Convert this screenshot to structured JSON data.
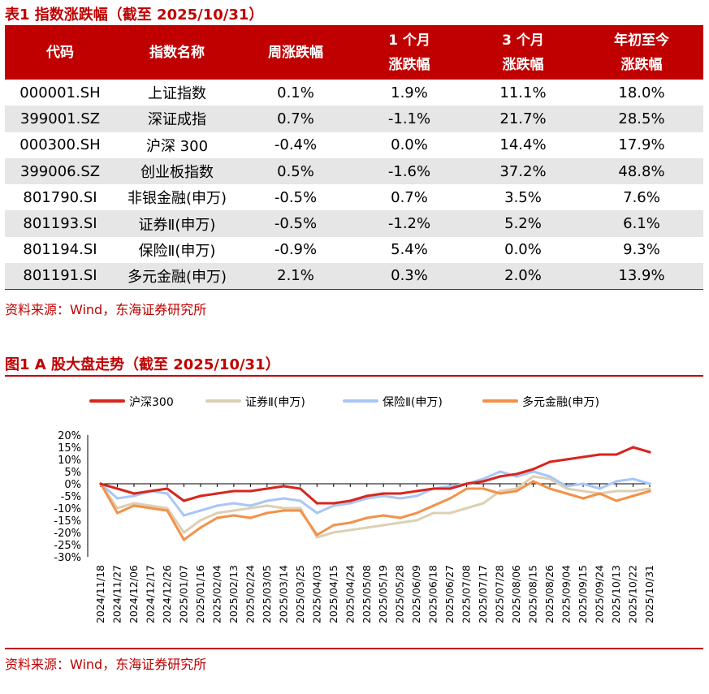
{
  "table": {
    "title": "表1  指数涨跌幅（截至 2025/10/31）",
    "headers": [
      [
        "代码"
      ],
      [
        "指数名称"
      ],
      [
        "周涨跌幅"
      ],
      [
        "1 个月",
        "涨跌幅"
      ],
      [
        "3 个月",
        "涨跌幅"
      ],
      [
        "年初至今",
        "涨跌幅"
      ]
    ],
    "rows": [
      [
        "000001.SH",
        "上证指数",
        "0.1%",
        "1.9%",
        "11.1%",
        "18.0%"
      ],
      [
        "399001.SZ",
        "深证成指",
        "0.7%",
        "-1.1%",
        "21.7%",
        "28.5%"
      ],
      [
        "000300.SH",
        "沪深 300",
        "-0.4%",
        "0.0%",
        "14.4%",
        "17.9%"
      ],
      [
        "399006.SZ",
        "创业板指数",
        "0.5%",
        "-1.6%",
        "37.2%",
        "48.8%"
      ],
      [
        "801790.SI",
        "非银金融(申万)",
        "-0.5%",
        "0.7%",
        "3.5%",
        "7.6%"
      ],
      [
        "801193.SI",
        "证券Ⅱ(申万)",
        "-0.5%",
        "-1.2%",
        "5.2%",
        "6.1%"
      ],
      [
        "801194.SI",
        "保险Ⅱ(申万)",
        "-0.9%",
        "5.4%",
        "0.0%",
        "9.3%"
      ],
      [
        "801191.SI",
        "多元金融(申万)",
        "2.1%",
        "0.3%",
        "2.0%",
        "13.9%"
      ]
    ],
    "source": "资料来源：Wind，东海证券研究所"
  },
  "figure": {
    "title": "图1  A 股大盘走势（截至 2025/10/31）",
    "source": "资料来源：Wind，东海证券研究所"
  },
  "chart_data": {
    "type": "line",
    "title": "A 股大盘走势（截至 2025/10/31）",
    "ylim": [
      -30,
      20
    ],
    "yticks": [
      "20%",
      "15%",
      "10%",
      "5%",
      "0%",
      "-5%",
      "-10%",
      "-15%",
      "-20%",
      "-25%",
      "-30%"
    ],
    "ytick_values": [
      20,
      15,
      10,
      5,
      0,
      -5,
      -10,
      -15,
      -20,
      -25,
      -30
    ],
    "categories": [
      "2024/11/18",
      "2024/11/27",
      "2024/12/06",
      "2024/12/17",
      "2024/12/26",
      "2025/01/07",
      "2025/01/16",
      "2025/02/04",
      "2025/02/13",
      "2025/02/24",
      "2025/03/05",
      "2025/03/14",
      "2025/03/25",
      "2025/04/03",
      "2025/04/15",
      "2025/04/24",
      "2025/05/08",
      "2025/05/19",
      "2025/05/28",
      "2025/06/09",
      "2025/06/18",
      "2025/06/27",
      "2025/07/08",
      "2025/07/17",
      "2025/07/28",
      "2025/08/06",
      "2025/08/15",
      "2025/08/26",
      "2025/09/04",
      "2025/09/15",
      "2025/09/24",
      "2025/10/13",
      "2025/10/22",
      "2025/10/31"
    ],
    "legend_position": "top",
    "series": [
      {
        "name": "沪深300",
        "color": "#d7261e",
        "values": [
          0,
          -2,
          -4,
          -3,
          -2,
          -7,
          -5,
          -4,
          -3,
          -3,
          -2,
          -1,
          -2,
          -8,
          -8,
          -7,
          -5,
          -4,
          -4,
          -3,
          -2,
          -2,
          0,
          1,
          3,
          4,
          6,
          9,
          10,
          11,
          12,
          12,
          15,
          13
        ]
      },
      {
        "name": "证券Ⅱ(申万)",
        "color": "#dcd0b4",
        "values": [
          0,
          -10,
          -8,
          -9,
          -10,
          -20,
          -15,
          -12,
          -11,
          -10,
          -9,
          -10,
          -10,
          -22,
          -20,
          -19,
          -18,
          -17,
          -16,
          -15,
          -12,
          -12,
          -10,
          -8,
          -3,
          -2,
          3,
          2,
          -2,
          -3,
          -4,
          -3,
          -3,
          -2
        ]
      },
      {
        "name": "保险Ⅱ(申万)",
        "color": "#a9c6f5",
        "values": [
          0,
          -6,
          -5,
          -3,
          -4,
          -13,
          -11,
          -9,
          -8,
          -9,
          -7,
          -6,
          -7,
          -12,
          -9,
          -8,
          -6,
          -5,
          -6,
          -5,
          -2,
          -1,
          0,
          2,
          5,
          3,
          5,
          3,
          -1,
          0,
          -2,
          1,
          2,
          0
        ]
      },
      {
        "name": "多元金融(申万)",
        "color": "#f4914a",
        "values": [
          0,
          -12,
          -9,
          -10,
          -11,
          -23,
          -18,
          -14,
          -13,
          -14,
          -12,
          -11,
          -11,
          -21,
          -17,
          -16,
          -14,
          -13,
          -14,
          -12,
          -9,
          -6,
          -2,
          -2,
          -4,
          -3,
          1,
          -2,
          -4,
          -6,
          -4,
          -7,
          -5,
          -3
        ]
      }
    ]
  }
}
